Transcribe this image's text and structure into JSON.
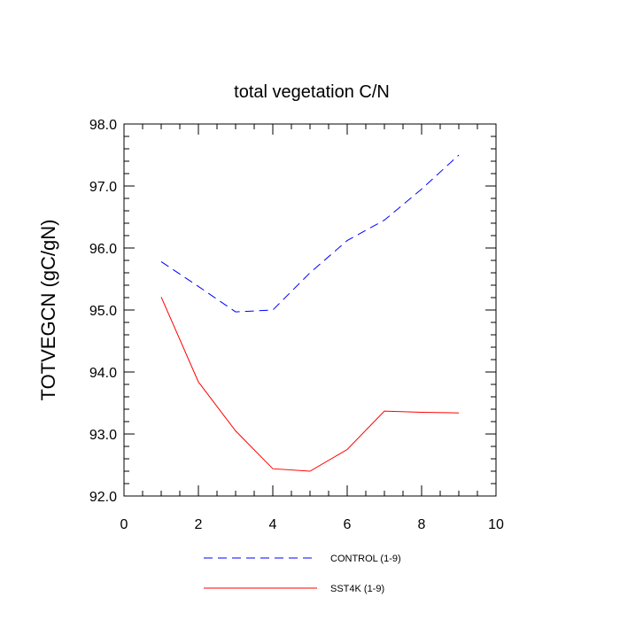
{
  "chart_data": {
    "type": "line",
    "title": "total vegetation C/N",
    "xlabel": "",
    "ylabel": "TOTVEGCN  (gC/gN)",
    "xlim": [
      0,
      10
    ],
    "ylim": [
      92.0,
      98.0
    ],
    "xticks": [
      0,
      2,
      4,
      6,
      8,
      10
    ],
    "xtick_labels": [
      "0",
      "2",
      "4",
      "6",
      "8",
      "10"
    ],
    "yticks": [
      92.0,
      93.0,
      94.0,
      95.0,
      96.0,
      97.0,
      98.0
    ],
    "ytick_labels": [
      "92.0",
      "93.0",
      "94.0",
      "95.0",
      "96.0",
      "97.0",
      "98.0"
    ],
    "x": [
      1,
      2,
      3,
      4,
      5,
      6,
      7,
      8,
      9
    ],
    "series": [
      {
        "name": "CONTROL (1-9)",
        "color": "#0000ff",
        "style": "dashed",
        "values": [
          95.78,
          95.38,
          94.97,
          95.0,
          95.6,
          96.12,
          96.45,
          96.95,
          97.5
        ]
      },
      {
        "name": "SST4K (1-9)",
        "color": "#ff0000",
        "style": "solid",
        "values": [
          95.21,
          93.84,
          93.05,
          92.44,
          92.4,
          92.75,
          93.37,
          93.35,
          93.34
        ]
      }
    ],
    "legend": "bottom",
    "grid": false
  }
}
